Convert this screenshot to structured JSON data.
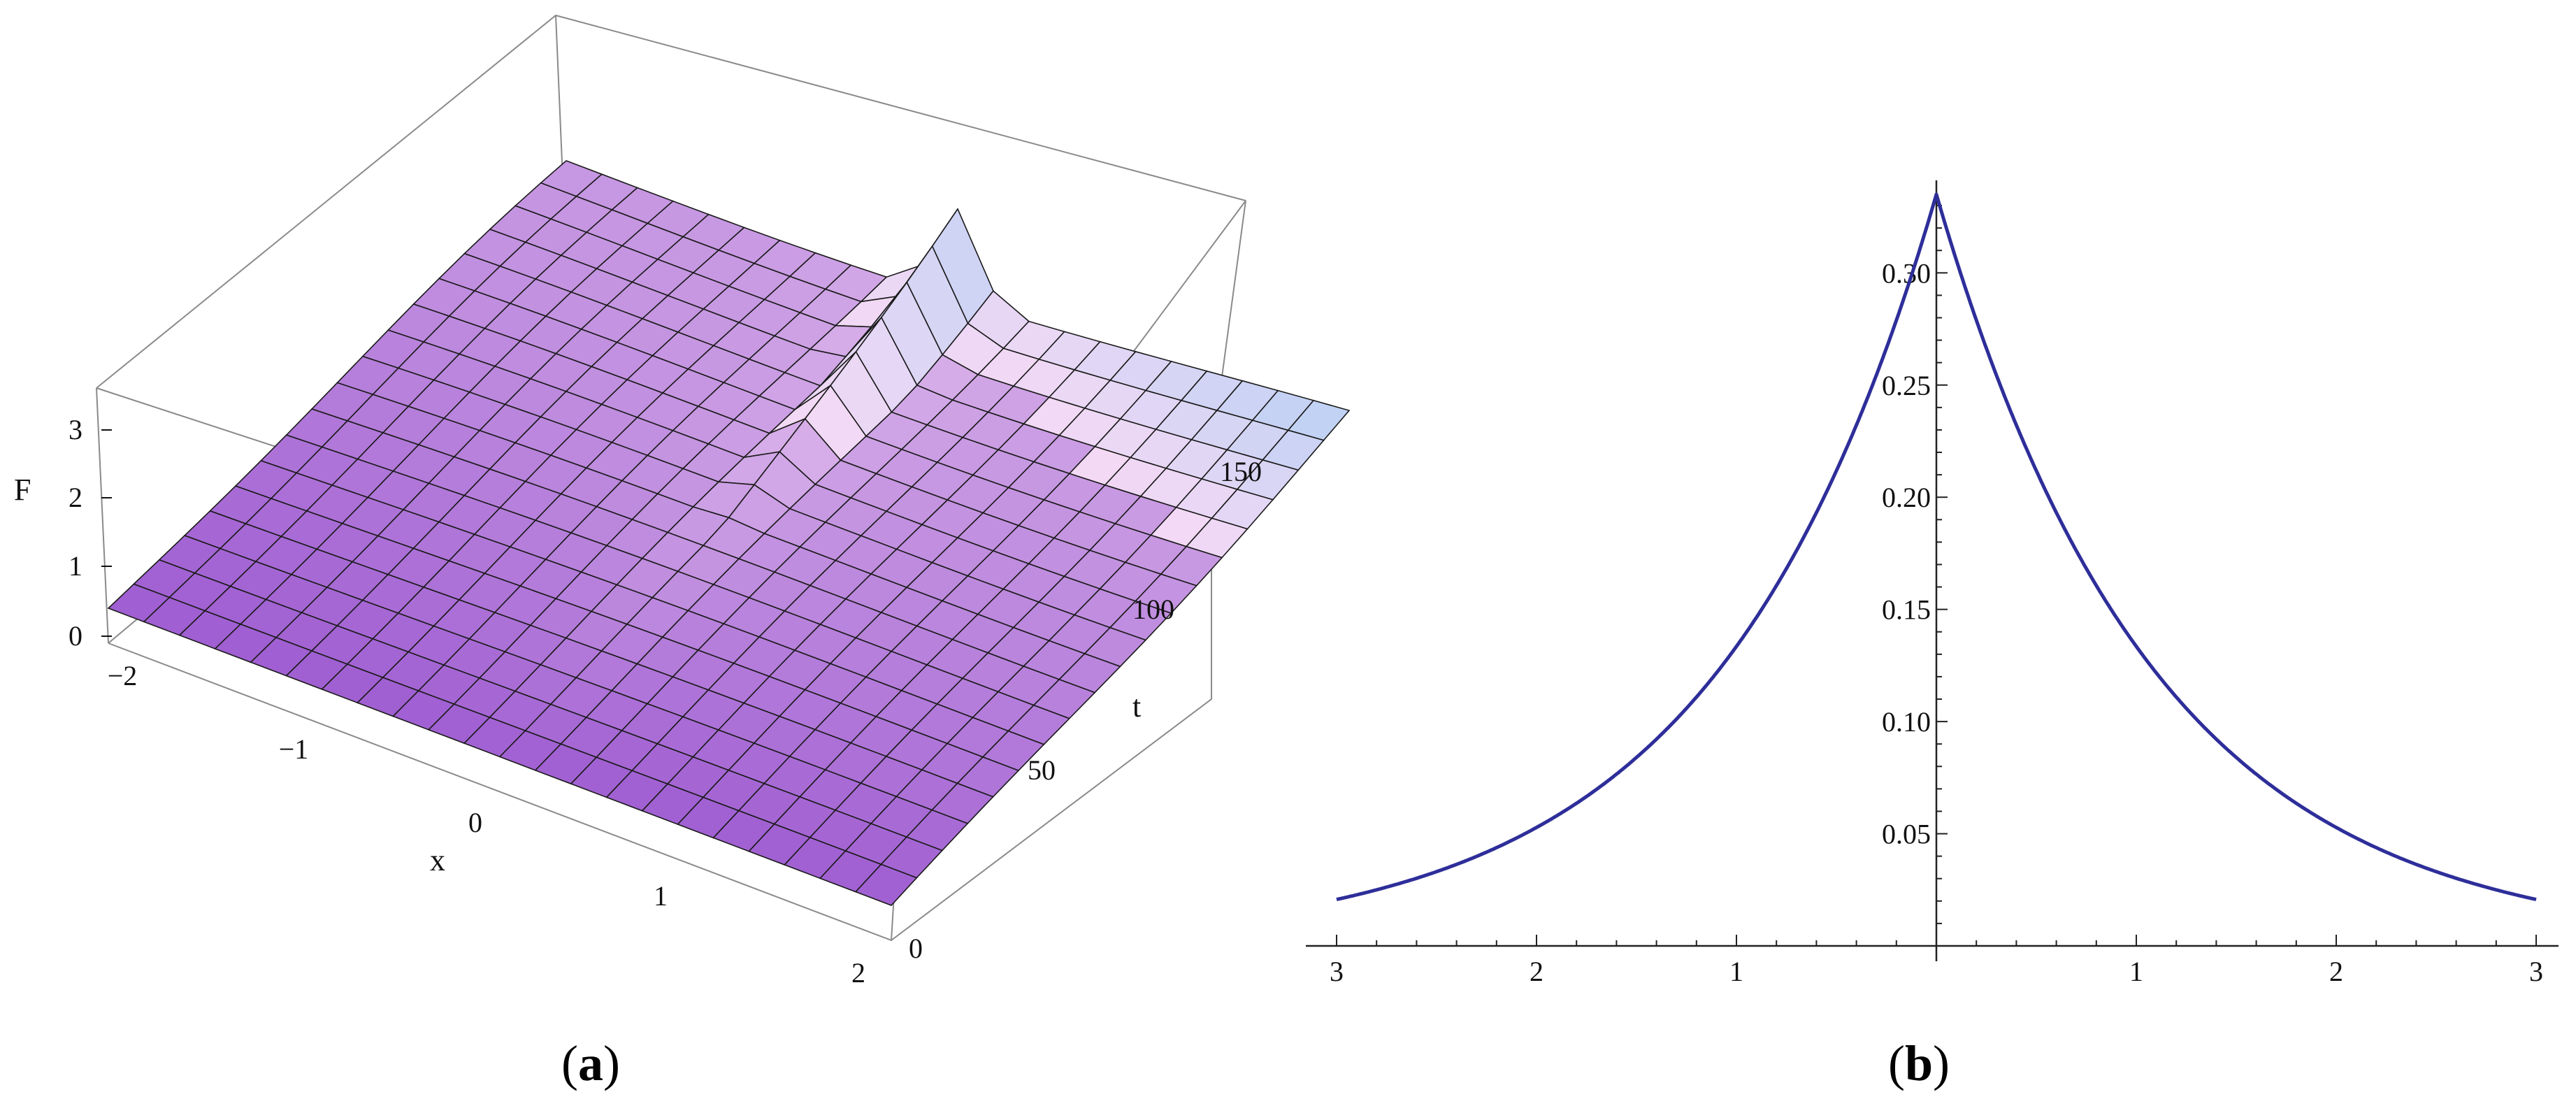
{
  "panels": {
    "a": {
      "open": "(",
      "letter": "a",
      "close": ")"
    },
    "b": {
      "open": "(",
      "letter": "b",
      "close": ")"
    }
  },
  "chart_data": [
    {
      "type": "surface3d",
      "panel": "a",
      "xlabel": "x",
      "ylabel": "t",
      "zlabel": "F",
      "xlim": [
        -2,
        2
      ],
      "ylim": [
        0,
        150
      ],
      "zlim": [
        0,
        3
      ],
      "x_ticks": [
        "−2",
        "−1",
        "0",
        "1",
        "2"
      ],
      "t_ticks": [
        "0",
        "50",
        "100",
        "150"
      ],
      "z_ticks": [
        "0",
        "1",
        "2",
        "3"
      ],
      "peak": {
        "x": 0,
        "t": 150,
        "F": 3.0
      },
      "colors": {
        "low": "#8a3fc9",
        "mid": "#f4d9f5",
        "high": "#5fc3f2",
        "mesh": "#1a1a1a",
        "box": "#8a8a8a"
      }
    },
    {
      "type": "line",
      "panel": "b",
      "x": [
        -3,
        -2.75,
        -2.5,
        -2.25,
        -2,
        -1.75,
        -1.5,
        -1.25,
        -1,
        -0.75,
        -0.5,
        -0.25,
        0,
        0.25,
        0.5,
        0.75,
        1,
        1.25,
        1.5,
        1.75,
        2,
        2.25,
        2.5,
        2.75,
        3
      ],
      "series": [
        {
          "values": [
            0.0207,
            0.0262,
            0.0331,
            0.0418,
            0.0528,
            0.0666,
            0.084,
            0.1059,
            0.1335,
            0.1682,
            0.2118,
            0.2664,
            0.335,
            0.2664,
            0.2118,
            0.1682,
            0.1335,
            0.1059,
            0.084,
            0.0666,
            0.0528,
            0.0418,
            0.0331,
            0.0262,
            0.0207
          ]
        }
      ],
      "x_tick_values": [
        -3,
        -2,
        -1,
        1,
        2,
        3
      ],
      "x_tick_labels": [
        "3",
        "2",
        "1",
        "1",
        "2",
        "3"
      ],
      "y_tick_values": [
        0.05,
        0.1,
        0.15,
        0.2,
        0.25,
        0.3
      ],
      "y_tick_labels": [
        "0.05",
        "0.10",
        "0.15",
        "0.20",
        "0.25",
        "0.30"
      ],
      "xlim": [
        -3.1,
        3.1
      ],
      "ylim": [
        0,
        0.345
      ],
      "color": "#2e2e9a"
    }
  ]
}
